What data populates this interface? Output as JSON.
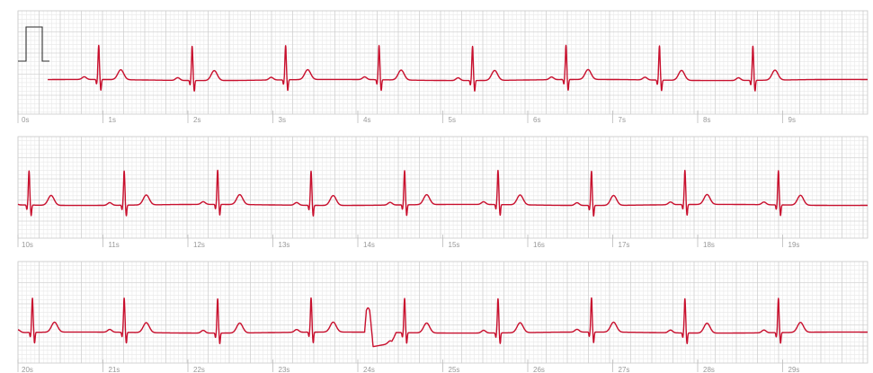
{
  "chart_data": {
    "type": "line",
    "description_units": "time in seconds; each strip shows 10 seconds",
    "strips": [
      {
        "start_s": 0,
        "end_s": 10,
        "tick_labels": [
          "0s",
          "1s",
          "2s",
          "3s",
          "4s",
          "5s",
          "6s",
          "7s",
          "8s",
          "9s"
        ],
        "beat_times_s": [
          0.95,
          2.05,
          3.15,
          4.25,
          5.35,
          6.45,
          7.55,
          8.65
        ],
        "calibration_pulse": true,
        "signal_start_s": 0.35
      },
      {
        "start_s": 10,
        "end_s": 20,
        "tick_labels": [
          "10s",
          "11s",
          "12s",
          "13s",
          "14s",
          "15s",
          "16s",
          "17s",
          "18s",
          "19s"
        ],
        "beat_times_s": [
          10.13,
          11.25,
          12.35,
          13.45,
          14.55,
          15.65,
          16.75,
          17.85,
          18.95
        ],
        "calibration_pulse": false
      },
      {
        "start_s": 20,
        "end_s": 30,
        "tick_labels": [
          "20s",
          "21s",
          "22s",
          "23s",
          "24s",
          "25s",
          "26s",
          "27s",
          "28s",
          "29s"
        ],
        "beat_times_s": [
          20.17,
          21.25,
          22.35,
          23.45,
          24.55,
          25.65,
          26.75,
          27.85,
          28.95
        ],
        "calibration_pulse": false,
        "artifact": {
          "time_s": 24.1,
          "type": "wide-complex"
        }
      }
    ],
    "colors": {
      "trace": "#c8102e",
      "grid_minor": "#e8e8e8",
      "grid_major": "#cccccc",
      "calibration": "#333333",
      "tick_text": "#999999"
    }
  }
}
